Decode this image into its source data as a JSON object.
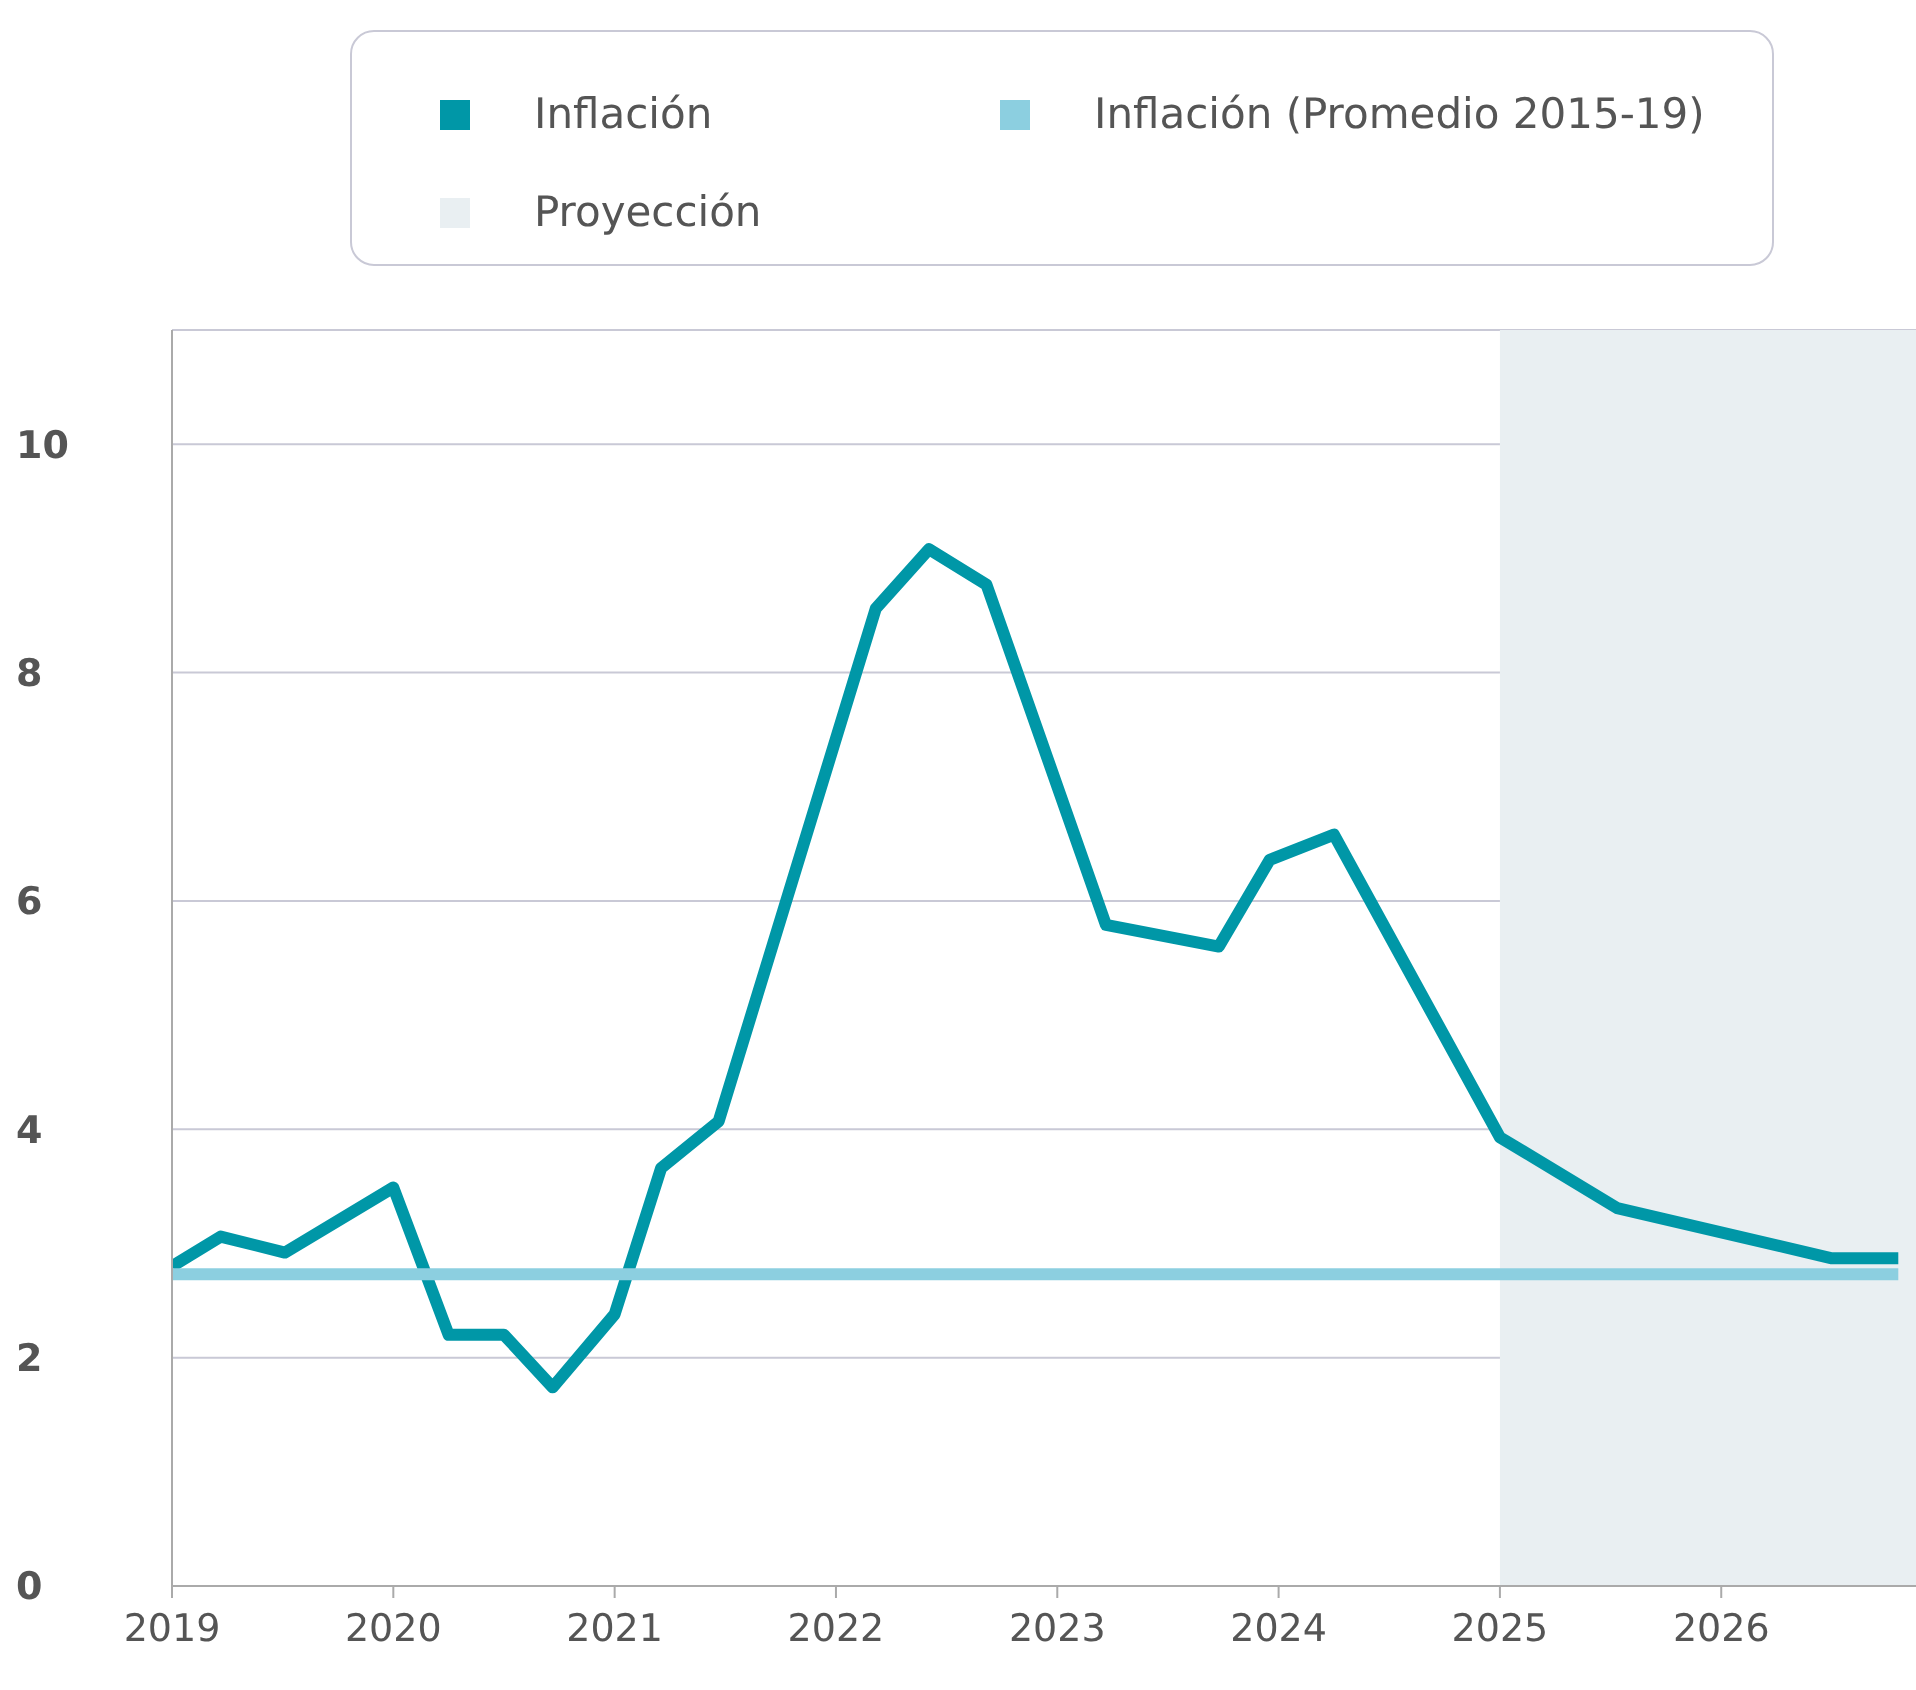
{
  "chart_data": {
    "type": "line",
    "legend": "top",
    "grid": "y",
    "xlim": [
      2019,
      2026.88
    ],
    "xticks": [
      2019,
      2020,
      2021,
      2022,
      2023,
      2024,
      2025,
      2026
    ],
    "ylim": [
      0,
      11
    ],
    "yticks": [
      0,
      2,
      4,
      6,
      8,
      10
    ],
    "series": [
      {
        "name": "Inflación",
        "color": "#0097a7",
        "x": [
          2019,
          2019.22,
          2019.51,
          2020,
          2020.25,
          2020.5,
          2020.72,
          2021,
          2021.21,
          2021.47,
          2022.18,
          2022.42,
          2022.68,
          2023.22,
          2023.73,
          2023.96,
          2024.25,
          2025,
          2025.53,
          2026.5,
          2026.8
        ],
        "values": [
          2.8,
          3.06,
          2.92,
          3.49,
          2.2,
          2.2,
          1.74,
          2.38,
          3.66,
          4.07,
          8.56,
          9.08,
          8.77,
          5.79,
          5.6,
          6.36,
          6.58,
          3.93,
          3.31,
          2.87,
          2.87
        ]
      },
      {
        "name": "Inflación (Promedio 2015-19)",
        "color": "#8ccfe0",
        "x": [
          2019,
          2026.8
        ],
        "values": [
          2.73,
          2.73
        ]
      }
    ],
    "bands": [
      {
        "axis": "x",
        "from": 2025,
        "to": 2026.88,
        "label": "Proyección",
        "color": "#e9eff2"
      }
    ]
  }
}
